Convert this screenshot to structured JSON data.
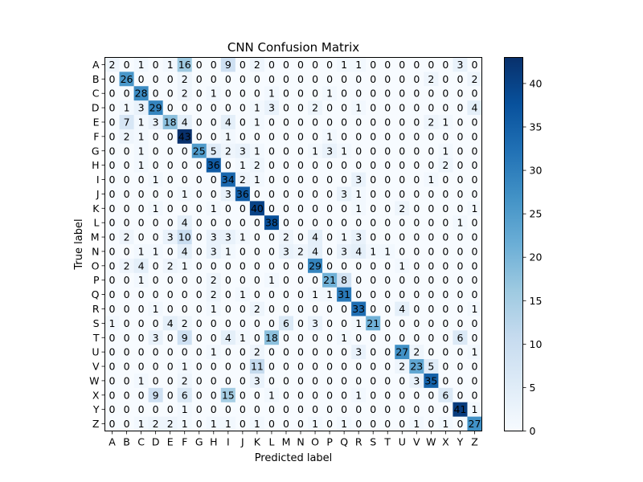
{
  "chart_data": {
    "type": "heatmap",
    "title": "CNN Confusion Matrix",
    "xlabel": "Predicted label",
    "ylabel": "True label",
    "x_categories": [
      "A",
      "B",
      "C",
      "D",
      "E",
      "F",
      "G",
      "H",
      "I",
      "J",
      "K",
      "L",
      "M",
      "N",
      "O",
      "P",
      "Q",
      "R",
      "S",
      "T",
      "U",
      "V",
      "W",
      "X",
      "Y",
      "Z"
    ],
    "y_categories": [
      "A",
      "B",
      "C",
      "D",
      "E",
      "F",
      "G",
      "H",
      "I",
      "J",
      "K",
      "L",
      "M",
      "N",
      "O",
      "P",
      "Q",
      "R",
      "S",
      "T",
      "U",
      "V",
      "W",
      "X",
      "Y",
      "Z"
    ],
    "matrix": [
      [
        2,
        0,
        1,
        0,
        1,
        16,
        0,
        0,
        9,
        0,
        2,
        0,
        0,
        0,
        0,
        0,
        1,
        1,
        0,
        0,
        0,
        0,
        0,
        0,
        3,
        0
      ],
      [
        0,
        26,
        0,
        0,
        0,
        2,
        0,
        0,
        0,
        0,
        0,
        0,
        0,
        0,
        0,
        0,
        0,
        0,
        0,
        0,
        0,
        0,
        2,
        0,
        0,
        2
      ],
      [
        0,
        0,
        28,
        0,
        0,
        2,
        0,
        1,
        0,
        0,
        0,
        1,
        0,
        0,
        0,
        1,
        0,
        0,
        0,
        0,
        0,
        0,
        0,
        0,
        0,
        0
      ],
      [
        0,
        1,
        3,
        29,
        0,
        0,
        0,
        0,
        0,
        0,
        1,
        3,
        0,
        0,
        2,
        0,
        0,
        1,
        0,
        0,
        0,
        0,
        0,
        0,
        0,
        4
      ],
      [
        0,
        7,
        1,
        3,
        18,
        4,
        0,
        0,
        4,
        0,
        1,
        0,
        0,
        0,
        0,
        0,
        0,
        0,
        0,
        0,
        0,
        0,
        2,
        1,
        0,
        0
      ],
      [
        0,
        2,
        1,
        0,
        0,
        43,
        0,
        0,
        1,
        0,
        0,
        0,
        0,
        0,
        0,
        1,
        0,
        0,
        0,
        0,
        0,
        0,
        0,
        0,
        0,
        0
      ],
      [
        0,
        0,
        1,
        0,
        0,
        0,
        25,
        5,
        2,
        3,
        1,
        0,
        0,
        0,
        1,
        3,
        1,
        0,
        0,
        0,
        0,
        0,
        0,
        1,
        0,
        0
      ],
      [
        0,
        0,
        1,
        0,
        0,
        0,
        0,
        36,
        0,
        1,
        2,
        0,
        0,
        0,
        0,
        0,
        0,
        0,
        0,
        0,
        0,
        0,
        0,
        2,
        0,
        0
      ],
      [
        0,
        0,
        0,
        1,
        0,
        0,
        0,
        0,
        34,
        2,
        1,
        0,
        0,
        0,
        0,
        0,
        0,
        3,
        0,
        0,
        0,
        0,
        1,
        0,
        0,
        0
      ],
      [
        0,
        0,
        0,
        0,
        0,
        1,
        0,
        0,
        3,
        36,
        0,
        0,
        0,
        0,
        0,
        0,
        3,
        1,
        0,
        0,
        0,
        0,
        0,
        0,
        0,
        0
      ],
      [
        0,
        0,
        0,
        1,
        0,
        0,
        0,
        1,
        0,
        0,
        40,
        0,
        0,
        0,
        0,
        0,
        0,
        1,
        0,
        0,
        2,
        0,
        0,
        0,
        0,
        1
      ],
      [
        0,
        0,
        0,
        0,
        0,
        4,
        0,
        0,
        0,
        0,
        0,
        38,
        0,
        0,
        0,
        0,
        0,
        0,
        0,
        0,
        0,
        0,
        0,
        0,
        1,
        0
      ],
      [
        0,
        2,
        0,
        0,
        3,
        10,
        0,
        3,
        3,
        1,
        0,
        0,
        2,
        0,
        4,
        0,
        1,
        3,
        0,
        0,
        0,
        0,
        0,
        0,
        0,
        0
      ],
      [
        0,
        0,
        1,
        1,
        0,
        4,
        0,
        3,
        1,
        0,
        0,
        0,
        3,
        2,
        4,
        0,
        3,
        4,
        1,
        1,
        0,
        0,
        0,
        0,
        0,
        0
      ],
      [
        0,
        2,
        4,
        0,
        2,
        1,
        0,
        0,
        0,
        0,
        0,
        0,
        0,
        0,
        29,
        0,
        0,
        0,
        0,
        0,
        1,
        0,
        0,
        0,
        0,
        0
      ],
      [
        0,
        0,
        1,
        0,
        0,
        0,
        0,
        2,
        0,
        0,
        0,
        1,
        0,
        0,
        0,
        21,
        8,
        0,
        0,
        0,
        0,
        0,
        0,
        0,
        0,
        0
      ],
      [
        0,
        0,
        0,
        0,
        0,
        0,
        0,
        2,
        0,
        1,
        0,
        0,
        0,
        0,
        1,
        1,
        31,
        0,
        0,
        0,
        0,
        0,
        0,
        0,
        0,
        0
      ],
      [
        0,
        0,
        0,
        1,
        0,
        0,
        0,
        1,
        0,
        0,
        2,
        0,
        0,
        0,
        0,
        0,
        0,
        33,
        0,
        0,
        4,
        0,
        0,
        0,
        0,
        1
      ],
      [
        1,
        0,
        0,
        0,
        4,
        2,
        0,
        0,
        0,
        0,
        0,
        0,
        6,
        0,
        3,
        0,
        0,
        1,
        21,
        0,
        0,
        0,
        0,
        0,
        0,
        0
      ],
      [
        0,
        0,
        0,
        3,
        0,
        9,
        0,
        0,
        4,
        1,
        0,
        18,
        0,
        0,
        0,
        0,
        1,
        0,
        0,
        0,
        0,
        0,
        0,
        0,
        6,
        0
      ],
      [
        0,
        0,
        0,
        0,
        0,
        0,
        0,
        1,
        0,
        0,
        2,
        0,
        0,
        0,
        0,
        0,
        0,
        3,
        0,
        0,
        27,
        2,
        0,
        0,
        0,
        1
      ],
      [
        0,
        0,
        0,
        0,
        0,
        1,
        0,
        0,
        0,
        0,
        11,
        0,
        0,
        0,
        0,
        0,
        0,
        0,
        0,
        0,
        2,
        23,
        5,
        0,
        0,
        0
      ],
      [
        0,
        0,
        1,
        0,
        0,
        2,
        0,
        0,
        0,
        0,
        3,
        0,
        0,
        0,
        0,
        0,
        0,
        0,
        0,
        0,
        0,
        3,
        35,
        0,
        0,
        0
      ],
      [
        0,
        0,
        0,
        9,
        0,
        6,
        0,
        0,
        15,
        0,
        0,
        1,
        0,
        0,
        0,
        0,
        0,
        1,
        0,
        0,
        0,
        0,
        0,
        6,
        0,
        0
      ],
      [
        0,
        0,
        0,
        0,
        0,
        1,
        0,
        0,
        0,
        0,
        0,
        0,
        0,
        0,
        0,
        0,
        0,
        0,
        0,
        0,
        0,
        0,
        0,
        0,
        41,
        1
      ],
      [
        0,
        0,
        1,
        2,
        2,
        1,
        0,
        1,
        1,
        0,
        1,
        0,
        0,
        0,
        1,
        0,
        1,
        0,
        0,
        0,
        0,
        1,
        0,
        1,
        0,
        27
      ]
    ],
    "colormap": "Blues",
    "colorbar": {
      "min": 0,
      "max": 43,
      "ticks": [
        0,
        5,
        10,
        15,
        20,
        25,
        30,
        35,
        40
      ]
    },
    "grid": false,
    "colors": {
      "low": "#f7fbff",
      "high": "#08306b",
      "light_text": "#ffffff",
      "dark_text": "#08306b"
    }
  }
}
